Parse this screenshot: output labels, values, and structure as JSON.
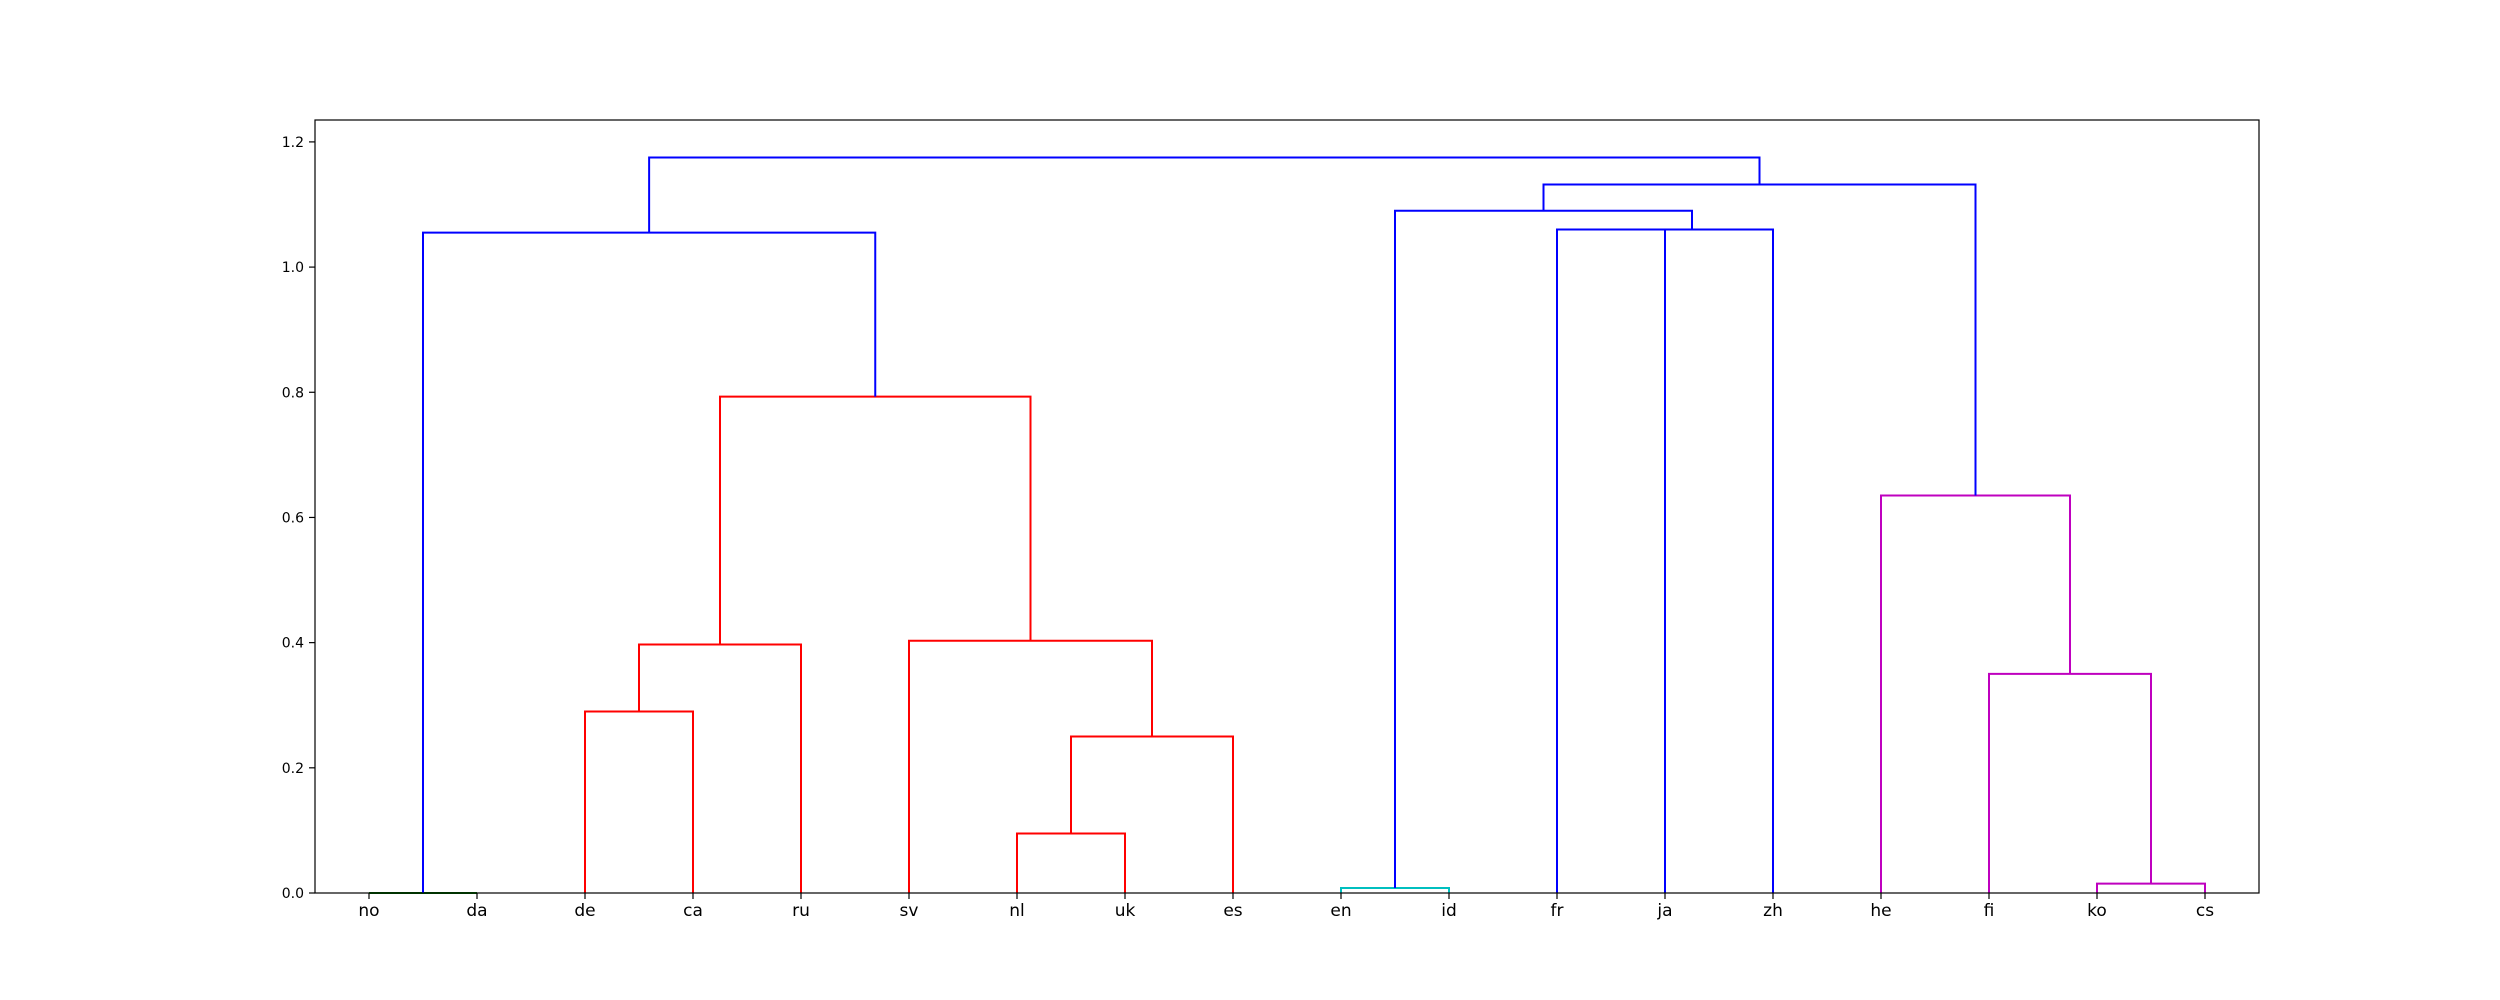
{
  "chart_data": {
    "type": "dendrogram",
    "title": "",
    "xlabel": "",
    "ylabel": "",
    "ylim": [
      0.0,
      1.235
    ],
    "yticks": [
      "0.0",
      "0.2",
      "0.4",
      "0.6",
      "0.8",
      "1.0",
      "1.2"
    ],
    "grid": false,
    "leaves": [
      "no",
      "da",
      "de",
      "ca",
      "ru",
      "sv",
      "nl",
      "uk",
      "es",
      "en",
      "id",
      "fr",
      "ja",
      "zh",
      "he",
      "fi",
      "ko",
      "cs"
    ],
    "merges": [
      {
        "id": "m1",
        "left": "no",
        "right": "da",
        "height": 0.0,
        "color": "#008000"
      },
      {
        "id": "m2",
        "left": "de",
        "right": "ca",
        "height": 0.29,
        "color": "#ff0000"
      },
      {
        "id": "m3",
        "left": "m2",
        "right": "ru",
        "height": 0.397,
        "color": "#ff0000"
      },
      {
        "id": "m4",
        "left": "nl",
        "right": "uk",
        "height": 0.095,
        "color": "#ff0000"
      },
      {
        "id": "m5",
        "left": "m4",
        "right": "es",
        "height": 0.25,
        "color": "#ff0000"
      },
      {
        "id": "m6",
        "left": "sv",
        "right": "m5",
        "height": 0.403,
        "color": "#ff0000"
      },
      {
        "id": "m7",
        "left": "m3",
        "right": "m6",
        "height": 0.793,
        "color": "#ff0000"
      },
      {
        "id": "m8",
        "left": "m1",
        "right": "m7",
        "height": 1.055,
        "color": "#0000ff"
      },
      {
        "id": "m9",
        "left": "en",
        "right": "id",
        "height": 0.008,
        "color": "#00bfbf"
      },
      {
        "id": "m10",
        "left": "ko",
        "right": "cs",
        "height": 0.015,
        "color": "#bf00bf"
      },
      {
        "id": "m11",
        "left": "fi",
        "right": "m10",
        "height": 0.35,
        "color": "#bf00bf"
      },
      {
        "id": "m12",
        "left": "he",
        "right": "m11",
        "height": 0.635,
        "color": "#bf00bf"
      },
      {
        "id": "m13",
        "left": "fr",
        "right": "ja",
        "height": 1.06,
        "color": "#0000ff"
      },
      {
        "id": "m14",
        "left": "m13",
        "right": "zh",
        "height": 1.06,
        "color": "#0000ff"
      },
      {
        "id": "m15",
        "left": "m9",
        "right": "m14",
        "height": 1.09,
        "color": "#0000ff"
      },
      {
        "id": "m16",
        "left": "m15",
        "right": "m12",
        "height": 1.132,
        "color": "#0000ff"
      },
      {
        "id": "m17",
        "left": "m8",
        "right": "m16",
        "height": 1.175,
        "color": "#0000ff"
      }
    ]
  }
}
